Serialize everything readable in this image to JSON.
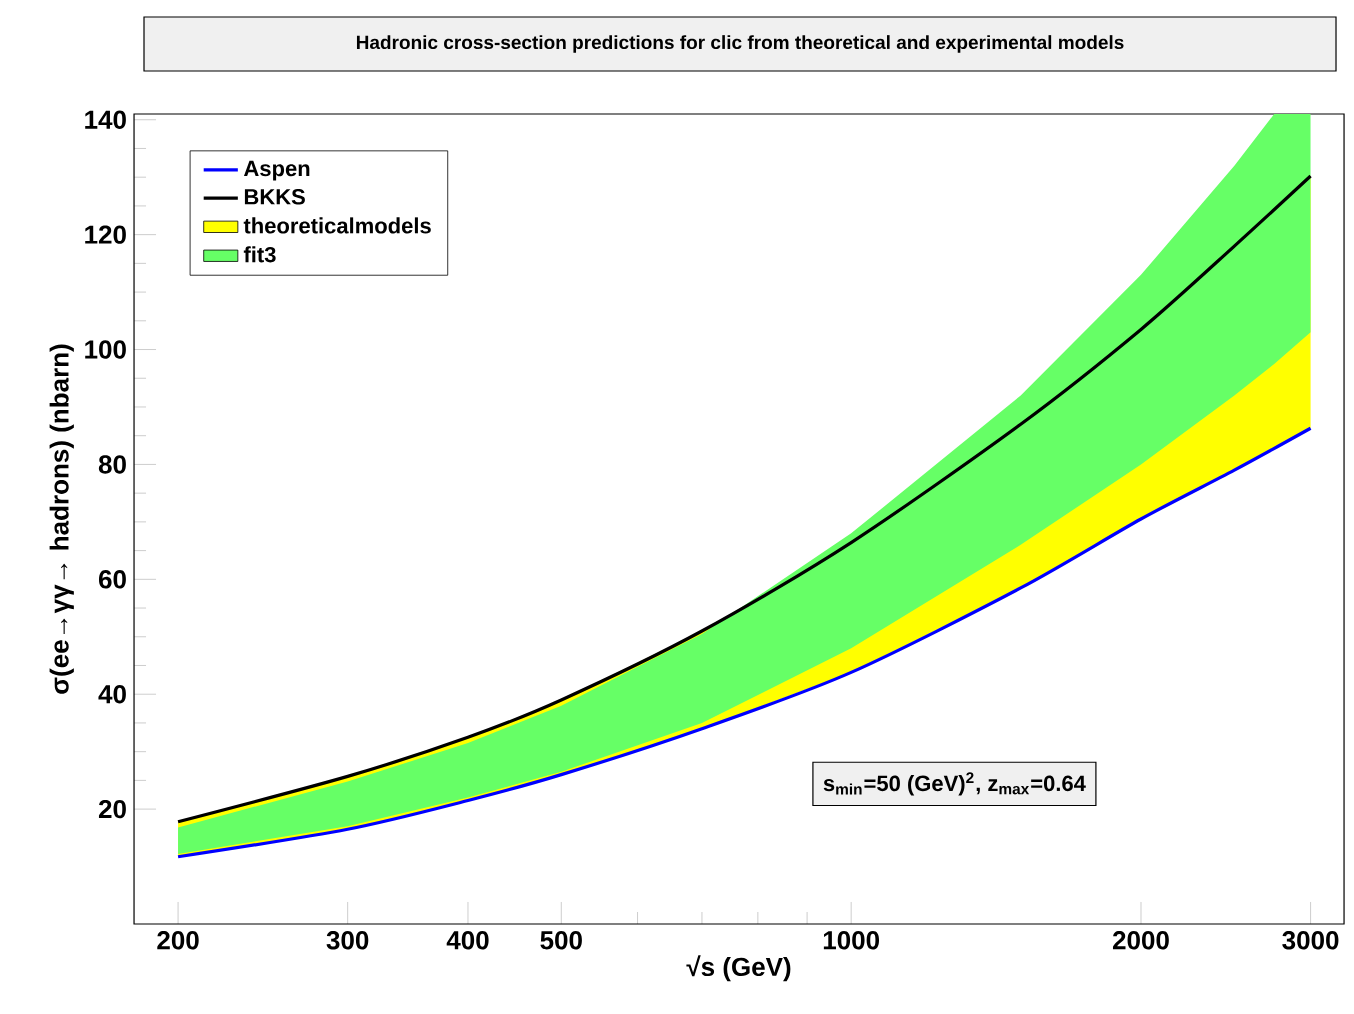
{
  "chart_data": {
    "type": "line",
    "title": "Hadronic cross-section predictions for clic from theoretical and experimental models",
    "xlabel": "√s (GeV)",
    "ylabel": "σ(ee→γγ→ hadrons) (nbarn)",
    "log": "x",
    "xlim": [
      180,
      3250
    ],
    "ylim": [
      0,
      141
    ],
    "xticks": [
      200,
      300,
      400,
      500,
      {
        "value": 600,
        "label": null
      },
      {
        "value": 700,
        "label": null
      },
      {
        "value": 800,
        "label": null
      },
      {
        "value": 900,
        "label": null
      },
      1000,
      2000,
      3000
    ],
    "yticks": [
      20,
      40,
      60,
      80,
      100,
      120,
      140
    ],
    "legend": "top left",
    "annotations": [
      "s$_{min}$=50 (GeV)$^{2}$, z$_{max}$=0.64"
    ],
    "x": [
      200,
      300,
      400,
      500,
      700,
      1000,
      1500,
      2000,
      2500,
      3000
    ],
    "series": [
      {
        "name": "theoreticalmodels",
        "type": "area",
        "color": "#ffff00",
        "values": [
          null,
          null,
          null,
          null,
          null,
          null,
          null,
          null,
          null,
          null
        ],
        "lower": [
          11.7,
          16.5,
          21.5,
          26,
          34,
          43.8,
          58.5,
          70.5,
          79,
          86.3
        ],
        "upper": [
          17.8,
          25.7,
          32.5,
          39,
          51,
          66.4,
          87,
          103.5,
          118,
          130.2
        ]
      },
      {
        "name": "fit3",
        "type": "area",
        "color": "#66ff66",
        "x": [
          200,
          300,
          400,
          500,
          700,
          1000,
          1500,
          2000,
          2500,
          2750,
          3000
        ],
        "values": [
          null,
          null,
          null,
          null,
          null,
          null,
          null,
          null,
          null,
          null,
          null
        ],
        "lower": [
          12.2,
          17,
          22,
          26.5,
          35,
          48,
          66,
          80,
          92,
          97.5,
          103
        ],
        "upper": [
          16.8,
          24.8,
          31.5,
          38,
          50.5,
          68,
          92,
          113,
          132,
          141,
          141
        ]
      },
      {
        "name": "Aspen",
        "color": "#0000ff",
        "values": [
          11.7,
          16.5,
          21.5,
          26,
          34,
          43.8,
          58.5,
          70.5,
          79,
          86.3
        ]
      },
      {
        "name": "BKKS",
        "color": "#000000",
        "values": [
          17.8,
          25.7,
          32.5,
          39,
          51,
          66.4,
          87,
          103.5,
          118,
          130.2
        ]
      }
    ]
  }
}
